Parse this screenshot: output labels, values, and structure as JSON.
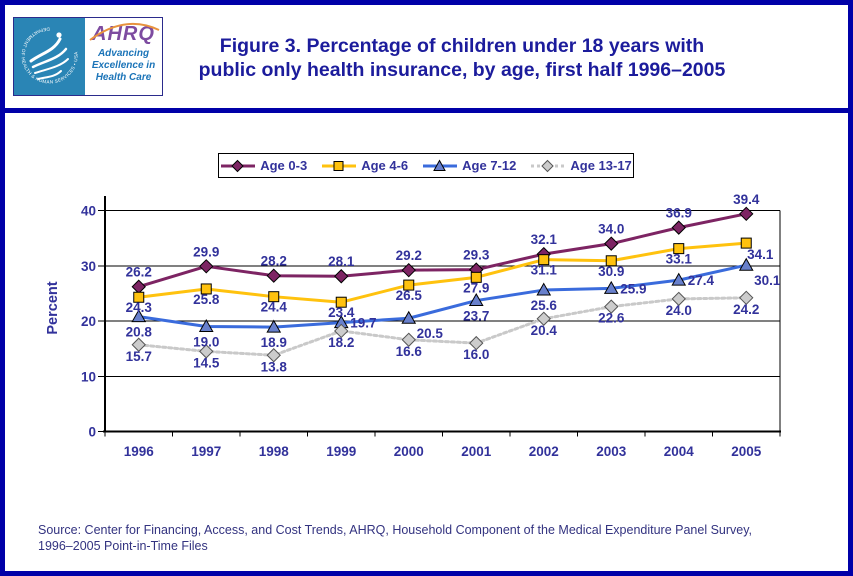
{
  "page": {
    "border_color": "#0000A8",
    "background": "#FFFFFF"
  },
  "header": {
    "logo": {
      "hhs_circle_text": "DEPARTMENT OF HEALTH & HUMAN SERVICES • USA",
      "ahrq_text": "AHRQ",
      "tagline_lines": [
        "Advancing",
        "Excellence in",
        "Health Care"
      ]
    },
    "title_lines": [
      "Figure 3. Percentage of children under 18 years with",
      "public only health insurance, by age, first half 1996–2005"
    ]
  },
  "chart_data": {
    "type": "line",
    "title": "Percentage of children under 18 years with public only health insurance, by age, first half 1996–2005",
    "categories": [
      "1996",
      "1997",
      "1998",
      "1999",
      "2000",
      "2001",
      "2002",
      "2003",
      "2004",
      "2005"
    ],
    "series": [
      {
        "name": "Age 0-3",
        "marker": "diamond",
        "line_color": "#7D2463",
        "marker_fill": "#7D2463",
        "marker_stroke": "#000000",
        "line_style": "solid",
        "values": [
          26.2,
          29.9,
          28.2,
          28.1,
          29.2,
          29.3,
          32.1,
          34.0,
          36.9,
          39.4
        ]
      },
      {
        "name": "Age 4-6",
        "marker": "square",
        "line_color": "#FFC20E",
        "marker_fill": "#FFC20E",
        "marker_stroke": "#000000",
        "line_style": "solid",
        "values": [
          24.3,
          25.8,
          24.4,
          23.4,
          26.5,
          27.9,
          31.1,
          30.9,
          33.1,
          34.1
        ]
      },
      {
        "name": "Age 7-12",
        "marker": "triangle",
        "line_color": "#3A6BDC",
        "marker_fill": "#6880CC",
        "marker_stroke": "#000000",
        "line_style": "solid",
        "values": [
          20.8,
          19.0,
          18.9,
          19.7,
          20.5,
          23.7,
          25.6,
          25.9,
          27.4,
          30.1
        ]
      },
      {
        "name": "Age 13-17",
        "marker": "diamond",
        "line_color": "#C9C9C9",
        "marker_fill": "#CCCCCC",
        "marker_stroke": "#555555",
        "line_style": "dotted",
        "values": [
          15.7,
          14.5,
          13.8,
          18.2,
          16.6,
          16.0,
          20.4,
          22.6,
          24.0,
          24.2
        ]
      }
    ],
    "xlabel": "",
    "ylabel": "Percent",
    "ylim": [
      0,
      40
    ],
    "yticks": [
      0,
      10,
      20,
      30,
      40
    ],
    "grid": true,
    "legend_position": "top-center",
    "text_color": "#32329B",
    "axis_color": "#000000"
  },
  "footer": {
    "source_lines": [
      "Source: Center for Financing, Access, and Cost Trends, AHRQ, Household Component of the Medical Expenditure Panel Survey,",
      "1996–2005 Point-in-Time Files"
    ]
  }
}
